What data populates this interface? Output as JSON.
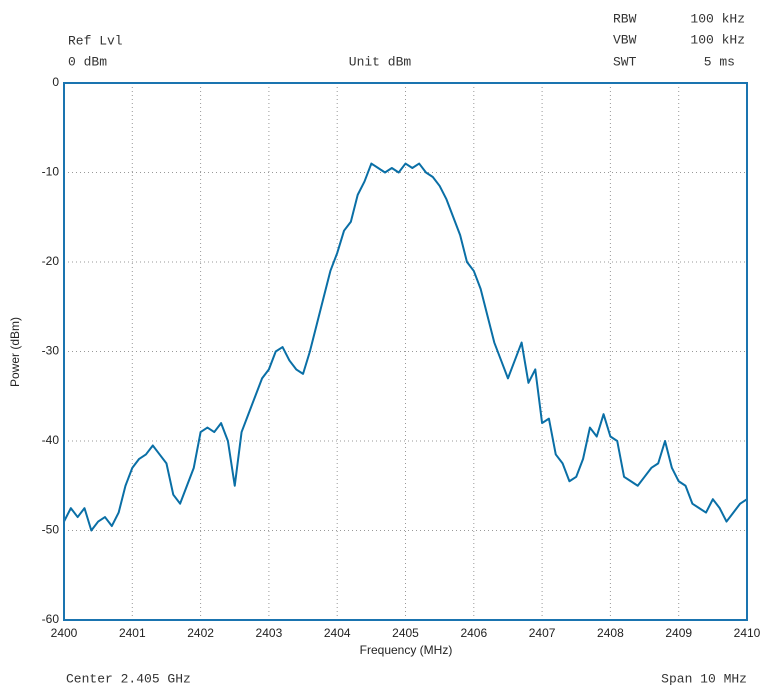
{
  "chart_data": {
    "type": "line",
    "header": {
      "ref_label": "Ref Lvl",
      "ref_value": "0 dBm",
      "unit": "Unit dBm",
      "rbw_label": "RBW",
      "rbw_value": "100 kHz",
      "vbw_label": "VBW",
      "vbw_value": "100 kHz",
      "swt_label": "SWT",
      "swt_value": "5 ms"
    },
    "footer": {
      "center": "Center 2.405 GHz",
      "span": "Span 10 MHz"
    },
    "x_label": "Frequency (MHz)",
    "y_label": "Power (dBm)",
    "xlim": [
      2400,
      2410
    ],
    "xticks": [
      2400,
      2401,
      2402,
      2403,
      2404,
      2405,
      2406,
      2407,
      2408,
      2409,
      2410
    ],
    "ylim": [
      -60,
      0
    ],
    "yticks": [
      -60,
      -50,
      -40,
      -30,
      -20,
      -10,
      0
    ],
    "grid": true,
    "series": [
      {
        "color": "#0a6fa6",
        "x": [
          2400.0,
          2400.1,
          2400.2,
          2400.3,
          2400.4,
          2400.5,
          2400.6,
          2400.7,
          2400.8,
          2400.9,
          2401.0,
          2401.1,
          2401.2,
          2401.3,
          2401.4,
          2401.5,
          2401.6,
          2401.7,
          2401.8,
          2401.9,
          2402.0,
          2402.1,
          2402.2,
          2402.3,
          2402.4,
          2402.5,
          2402.6,
          2402.7,
          2402.8,
          2402.9,
          2403.0,
          2403.1,
          2403.2,
          2403.3,
          2403.4,
          2403.5,
          2403.6,
          2403.7,
          2403.8,
          2403.9,
          2404.0,
          2404.1,
          2404.2,
          2404.3,
          2404.4,
          2404.5,
          2404.6,
          2404.7,
          2404.8,
          2404.9,
          2405.0,
          2405.1,
          2405.2,
          2405.3,
          2405.4,
          2405.5,
          2405.6,
          2405.7,
          2405.8,
          2405.9,
          2406.0,
          2406.1,
          2406.2,
          2406.3,
          2406.4,
          2406.5,
          2406.6,
          2406.7,
          2406.8,
          2406.9,
          2407.0,
          2407.1,
          2407.2,
          2407.3,
          2407.4,
          2407.5,
          2407.6,
          2407.7,
          2407.8,
          2407.9,
          2408.0,
          2408.1,
          2408.2,
          2408.3,
          2408.4,
          2408.5,
          2408.6,
          2408.7,
          2408.8,
          2408.9,
          2409.0,
          2409.1,
          2409.2,
          2409.3,
          2409.4,
          2409.5,
          2409.6,
          2409.7,
          2409.8,
          2409.9,
          2410.0
        ],
        "values": [
          -49,
          -47.5,
          -48.5,
          -47.5,
          -50,
          -49,
          -48.5,
          -49.5,
          -48,
          -45,
          -43,
          -42,
          -41.5,
          -40.5,
          -41.5,
          -42.5,
          -46,
          -47,
          -45,
          -43,
          -39,
          -38.5,
          -39,
          -38,
          -40,
          -45,
          -39,
          -37,
          -35,
          -33,
          -32,
          -30,
          -29.5,
          -31,
          -32,
          -32.5,
          -30,
          -27,
          -24,
          -21,
          -19,
          -16.5,
          -15.5,
          -12.5,
          -11,
          -9,
          -9.5,
          -10,
          -9.5,
          -10,
          -9,
          -9.5,
          -9,
          -10,
          -10.5,
          -11.5,
          -13,
          -15,
          -17,
          -20,
          -21,
          -23,
          -26,
          -29,
          -31,
          -33,
          -31,
          -29,
          -33.5,
          -32,
          -38,
          -37.5,
          -41.5,
          -42.5,
          -44.5,
          -44,
          -42,
          -38.5,
          -39.5,
          -37,
          -39.5,
          -40,
          -44,
          -44.5,
          -45,
          -44,
          -43,
          -42.5,
          -40,
          -43,
          -44.5,
          -45,
          -47,
          -47.5,
          -48,
          -46.5,
          -47.5,
          -49,
          -48,
          -47,
          -46.5
        ]
      }
    ]
  }
}
